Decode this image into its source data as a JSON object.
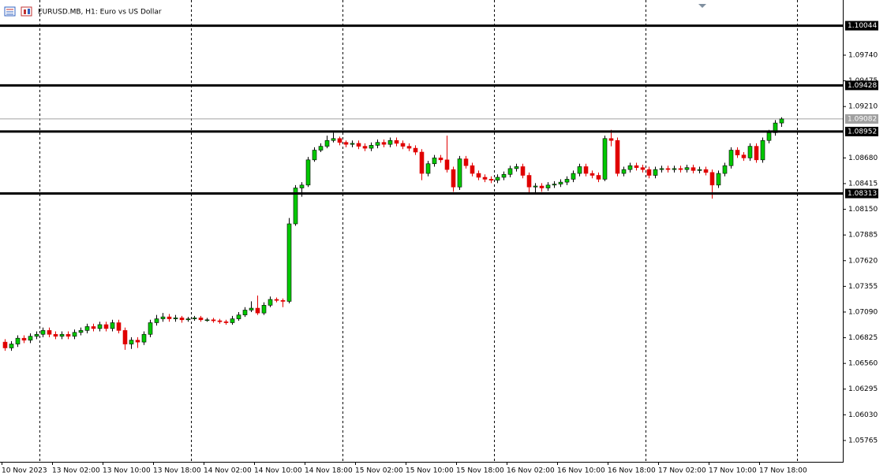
{
  "chart_data": {
    "type": "candlestick",
    "title": "EURUSD.MB, H1:  Euro vs US Dollar",
    "up_color": "#00c800",
    "down_color": "#e00000",
    "level_color": "#000000",
    "current_color": "#a0a0a0",
    "categories": [
      "10 Nov 2023",
      null,
      null,
      null,
      null,
      null,
      null,
      null,
      "13 Nov 02:00",
      null,
      null,
      null,
      null,
      null,
      null,
      null,
      "13 Nov 10:00",
      null,
      null,
      null,
      null,
      null,
      null,
      null,
      "13 Nov 18:00",
      null,
      null,
      null,
      null,
      null,
      null,
      null,
      "14 Nov 02:00",
      null,
      null,
      null,
      null,
      null,
      null,
      null,
      "14 Nov 10:00",
      null,
      null,
      null,
      null,
      null,
      null,
      null,
      "14 Nov 18:00",
      null,
      null,
      null,
      null,
      null,
      null,
      null,
      "15 Nov 02:00",
      null,
      null,
      null,
      null,
      null,
      null,
      null,
      "15 Nov 10:00",
      null,
      null,
      null,
      null,
      null,
      null,
      null,
      "15 Nov 18:00",
      null,
      null,
      null,
      null,
      null,
      null,
      null,
      "16 Nov 02:00",
      null,
      null,
      null,
      null,
      null,
      null,
      null,
      "16 Nov 10:00",
      null,
      null,
      null,
      null,
      null,
      null,
      null,
      "16 Nov 18:00",
      null,
      null,
      null,
      null,
      null,
      null,
      null,
      "17 Nov 02:00",
      null,
      null,
      null,
      null,
      null,
      null,
      null,
      "17 Nov 10:00",
      null,
      null,
      null,
      null,
      null,
      null,
      null,
      "17 Nov 18:00",
      null,
      null,
      null
    ],
    "open": [
      1.0678,
      1.0672,
      1.0676,
      1.0682,
      1.068,
      1.0684,
      1.0686,
      1.069,
      1.0686,
      1.0684,
      1.0686,
      1.0684,
      1.0688,
      1.069,
      1.0694,
      1.0692,
      1.0696,
      1.0692,
      1.0698,
      1.069,
      1.0676,
      1.068,
      1.0678,
      1.0686,
      1.0698,
      1.0702,
      1.0704,
      1.0702,
      1.0703,
      1.0701,
      1.0702,
      1.0703,
      1.0701,
      1.0701,
      1.07,
      1.0699,
      1.0698,
      1.0702,
      1.0706,
      1.0711,
      1.0713,
      1.0708,
      1.0716,
      1.0722,
      1.0721,
      1.072,
      1.08,
      1.0837,
      1.084,
      1.0866,
      1.0876,
      1.088,
      1.0886,
      1.0888,
      1.0884,
      1.0882,
      1.0883,
      1.088,
      1.0878,
      1.0881,
      1.0884,
      1.0882,
      1.0886,
      1.0883,
      1.088,
      1.0878,
      1.0874,
      1.0852,
      1.0862,
      1.0868,
      1.0866,
      1.0856,
      1.0838,
      1.0867,
      1.086,
      1.0852,
      1.0848,
      1.0846,
      1.0845,
      1.0848,
      1.0851,
      1.0857,
      1.0859,
      1.085,
      1.0838,
      1.0839,
      1.0837,
      1.084,
      1.0841,
      1.0843,
      1.0846,
      1.0852,
      1.0859,
      1.0852,
      1.085,
      1.0846,
      1.0888,
      1.0886,
      1.0852,
      1.0856,
      1.086,
      1.0858,
      1.0856,
      1.085,
      1.0856,
      1.0857,
      1.0856,
      1.0857,
      1.0856,
      1.0858,
      1.0855,
      1.0856,
      1.0853,
      1.084,
      1.0852,
      1.086,
      1.0876,
      1.0871,
      1.0868,
      1.088,
      1.0866,
      1.0886,
      1.0894,
      1.0904
    ],
    "high": [
      1.0681,
      1.0679,
      1.0685,
      1.0685,
      1.0687,
      1.0689,
      1.0693,
      1.0693,
      1.0689,
      1.0689,
      1.0689,
      1.0691,
      1.0693,
      1.0697,
      1.0697,
      1.0699,
      1.0699,
      1.0701,
      1.0701,
      1.0693,
      1.0683,
      1.0683,
      1.0689,
      1.0701,
      1.0706,
      1.0708,
      1.0707,
      1.0706,
      1.0705,
      1.0704,
      1.0705,
      1.0705,
      1.0703,
      1.0703,
      1.0702,
      1.0701,
      1.0705,
      1.0709,
      1.0714,
      1.072,
      1.0726,
      1.0719,
      1.0725,
      1.0724,
      1.0723,
      1.0806,
      1.084,
      1.0843,
      1.0869,
      1.0879,
      1.0883,
      1.0891,
      1.0894,
      1.089,
      1.0886,
      1.0886,
      1.0886,
      1.0883,
      1.0884,
      1.0887,
      1.0887,
      1.0889,
      1.0889,
      1.0886,
      1.0883,
      1.0881,
      1.0877,
      1.0865,
      1.0871,
      1.0871,
      1.0891,
      1.0859,
      1.087,
      1.087,
      1.0863,
      1.0855,
      1.0851,
      1.0849,
      1.0851,
      1.0854,
      1.086,
      1.0862,
      1.0862,
      1.0853,
      1.0842,
      1.0842,
      1.0843,
      1.0844,
      1.0846,
      1.0849,
      1.0855,
      1.0862,
      1.0862,
      1.0855,
      1.0853,
      1.0891,
      1.0897,
      1.0889,
      1.0859,
      1.0863,
      1.0863,
      1.0861,
      1.0859,
      1.0859,
      1.086,
      1.086,
      1.086,
      1.086,
      1.0861,
      1.0861,
      1.0859,
      1.0859,
      1.0856,
      1.0855,
      1.0863,
      1.0879,
      1.0879,
      1.0874,
      1.0883,
      1.0883,
      1.0889,
      1.0897,
      1.0907,
      1.091
    ],
    "low": [
      1.0669,
      1.0669,
      1.0673,
      1.0677,
      1.0677,
      1.0681,
      1.0683,
      1.0683,
      1.0681,
      1.0681,
      1.0681,
      1.0681,
      1.0685,
      1.0687,
      1.0689,
      1.0689,
      1.0689,
      1.0689,
      1.0687,
      1.067,
      1.0671,
      1.0672,
      1.0675,
      1.0683,
      1.0695,
      1.0699,
      1.0699,
      1.0699,
      1.0698,
      1.0699,
      1.07,
      1.0699,
      1.0699,
      1.0698,
      1.0697,
      1.0696,
      1.0696,
      1.07,
      1.0704,
      1.0709,
      1.0706,
      1.0706,
      1.0714,
      1.0719,
      1.0714,
      1.0718,
      1.0798,
      1.0828,
      1.0838,
      1.0864,
      1.0874,
      1.0878,
      1.0884,
      1.0881,
      1.0879,
      1.0879,
      1.0877,
      1.0875,
      1.0875,
      1.0878,
      1.0879,
      1.0879,
      1.088,
      1.0877,
      1.0875,
      1.0871,
      1.0845,
      1.0849,
      1.0859,
      1.0863,
      1.0853,
      1.0833,
      1.0835,
      1.0857,
      1.0849,
      1.0845,
      1.0843,
      1.0842,
      1.0842,
      1.0845,
      1.0848,
      1.0854,
      1.0847,
      1.0832,
      1.0832,
      1.0833,
      1.0834,
      1.0837,
      1.0838,
      1.084,
      1.0843,
      1.0849,
      1.0849,
      1.0847,
      1.0843,
      1.0844,
      1.088,
      1.0849,
      1.0849,
      1.0853,
      1.0855,
      1.0853,
      1.0847,
      1.0847,
      1.0853,
      1.0853,
      1.0853,
      1.0853,
      1.0853,
      1.0852,
      1.0852,
      1.085,
      1.0826,
      1.0837,
      1.0849,
      1.0857,
      1.0868,
      1.0865,
      1.0865,
      1.0863,
      1.0863,
      1.0883,
      1.0891,
      1.09
    ],
    "close": [
      1.0672,
      1.0676,
      1.0682,
      1.068,
      1.0684,
      1.0686,
      1.069,
      1.0686,
      1.0684,
      1.0686,
      1.0684,
      1.0688,
      1.069,
      1.0694,
      1.0692,
      1.0696,
      1.0692,
      1.0698,
      1.069,
      1.0676,
      1.068,
      1.0678,
      1.0686,
      1.0698,
      1.0702,
      1.0704,
      1.0702,
      1.0703,
      1.0701,
      1.0702,
      1.0703,
      1.0701,
      1.0701,
      1.07,
      1.0699,
      1.0698,
      1.0702,
      1.0706,
      1.0711,
      1.0713,
      1.0708,
      1.0716,
      1.0722,
      1.0721,
      1.072,
      1.08,
      1.0837,
      1.084,
      1.0866,
      1.0876,
      1.088,
      1.0886,
      1.0888,
      1.0884,
      1.0882,
      1.0883,
      1.088,
      1.0878,
      1.0881,
      1.0884,
      1.0882,
      1.0886,
      1.0883,
      1.088,
      1.0878,
      1.0874,
      1.0852,
      1.0862,
      1.0868,
      1.0866,
      1.0856,
      1.0838,
      1.0867,
      1.086,
      1.0852,
      1.0848,
      1.0846,
      1.0845,
      1.0848,
      1.0851,
      1.0857,
      1.0859,
      1.085,
      1.0838,
      1.0839,
      1.0837,
      1.084,
      1.0841,
      1.0843,
      1.0846,
      1.0852,
      1.0859,
      1.0852,
      1.085,
      1.0846,
      1.0888,
      1.0886,
      1.0852,
      1.0856,
      1.086,
      1.0858,
      1.0856,
      1.085,
      1.0856,
      1.0857,
      1.0856,
      1.0857,
      1.0856,
      1.0858,
      1.0855,
      1.0856,
      1.0853,
      1.084,
      1.0852,
      1.086,
      1.0876,
      1.0871,
      1.0868,
      1.088,
      1.0866,
      1.0886,
      1.0894,
      1.0904,
      1.09082
    ],
    "levels": [
      1.10044,
      1.09428,
      1.08952,
      1.08313
    ],
    "current_price": 1.09082,
    "ylim": [
      1.05545,
      1.10309
    ],
    "yticks": [
      {
        "value": 1.0974,
        "label": "1.09740"
      },
      1.09475,
      {
        "value": 1.0921,
        "label": "1.09210"
      },
      {
        "value": 1.0868,
        "label": "1.08680"
      },
      1.08415,
      {
        "value": 1.0815,
        "label": "1.08150"
      },
      1.07885,
      {
        "value": 1.0762,
        "label": "1.07620"
      },
      1.07355,
      {
        "value": 1.0709,
        "label": "1.07090"
      },
      1.06825,
      {
        "value": 1.0656,
        "label": "1.06560"
      },
      1.06295,
      {
        "value": 1.0603,
        "label": "1.06030"
      },
      1.05765
    ]
  }
}
